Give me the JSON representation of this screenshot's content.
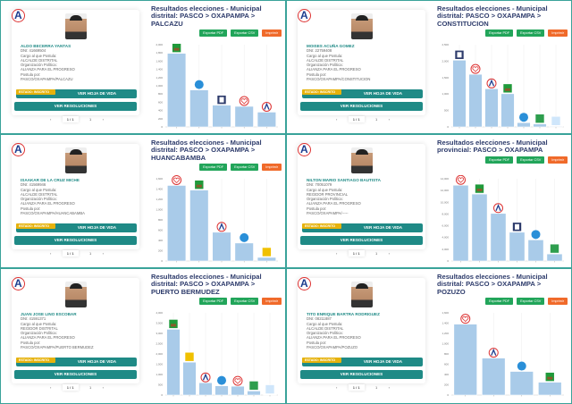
{
  "common": {
    "labels": {
      "dni": "DNI:",
      "cargo": "Cargo al que Postula:",
      "org": "Organización Política:",
      "postula": "Postula por:"
    },
    "badge": "ESTADO: INSCRITO",
    "btn_hoja": "VER HOJA DE VIDA",
    "btn_res": "VER RESOLUCIONES",
    "export_pdf": "Exportar PDF",
    "export_csv": "Exportar CSV",
    "print": "Imprimir",
    "pager": {
      "prev": "‹",
      "page": "1 / 1",
      "total": "1",
      "next": "›"
    },
    "colors": {
      "teal": "#1f8a86",
      "badge": "#e6b20c",
      "green": "#22a55a",
      "orange": "#f06a2a",
      "bar": "#a9cbe9",
      "title": "#2d3b6b"
    }
  },
  "panels": [
    {
      "name": "ALDO BECERRA YANTAS",
      "dni": "41669504",
      "cargo": "ALCALDE DISTRITAL",
      "org": "ALIANZA PARA EL PROGRESO",
      "postula": "PASCO/OXAPAMPA/PALCAZU",
      "title": "Resultados elecciones - Municipal distrital: PASCO > OXAPAMPA > PALCAZU"
    },
    {
      "name": "MOISES ACUÑA GOMEZ",
      "dni": "22759408",
      "cargo": "ALCALDE DISTRITAL",
      "org": "ALIANZA PARA EL PROGRESO",
      "postula": "PASCO/OXAPAMPA/CONSTITUCION",
      "title": "Resultados elecciones - Municipal distrital: PASCO > OXAPAMPA > CONSTITUCION"
    },
    {
      "name": "ISAAKAR DE LA CRUZ MICHE",
      "dni": "41569946",
      "cargo": "ALCALDE DISTRITAL",
      "org": "ALIANZA PARA EL PROGRESO",
      "postula": "PASCO/OXAPAMPA/HUANCABAMBA",
      "title": "Resultados elecciones - Municipal distrital: PASCO > OXAPAMPA > HUANCABAMBA"
    },
    {
      "name": "NILTON MARIO SANTIAGO BAUTISTA",
      "dni": "70051079",
      "cargo": "REGIDOR PROVINCIAL",
      "org": "ALIANZA PARA EL PROGRESO",
      "postula": "PASCO/OXAPAMPA/-----",
      "title": "Resultados elecciones - Municipal provincial: PASCO > OXAPAMPA"
    },
    {
      "name": "JUAN JOSE LINO ESCOBAR",
      "dni": "41591371",
      "cargo": "REGIDOR DISTRITAL",
      "org": "ALIANZA PARA EL PROGRESO",
      "postula": "PASCO/OXAPAMPA/PUERTO BERMUDEZ",
      "title": "Resultados elecciones - Municipal distrital: PASCO > OXAPAMPA > PUERTO BERMUDEZ"
    },
    {
      "name": "TITO ENRIQUE BARTRA RODRIGUEZ",
      "dni": "08211887",
      "cargo": "ALCALDE DISTRITAL",
      "org": "ALIANZA PARA EL PROGRESO",
      "postula": "PASCO/OXAPAMPA/POZUZO",
      "title": "Resultados elecciones - Municipal distrital: PASCO > OXAPAMPA > POZUZO"
    }
  ],
  "chart_data": [
    {
      "type": "bar",
      "ylim": [
        0,
        2000
      ],
      "yticks": [
        "0",
        "200",
        "400",
        "600",
        "800",
        "1,000",
        "1,200",
        "1,400",
        "1,600",
        "1,800",
        "2,000"
      ],
      "values": [
        1790,
        900,
        530,
        500,
        360
      ],
      "party_logos": [
        "plant",
        "drop",
        "p",
        "heart",
        "a"
      ]
    },
    {
      "type": "bar",
      "ylim": [
        0,
        2500
      ],
      "yticks": [
        "0",
        "500",
        "1,000",
        "1,500",
        "2,000",
        "2,500"
      ],
      "values": [
        2030,
        1600,
        1160,
        1010,
        130,
        90,
        20
      ],
      "party_logos": [
        "p",
        "heart",
        "a",
        "plant",
        "drop",
        "house",
        "blue"
      ]
    },
    {
      "type": "bar",
      "ylim": [
        0,
        1600
      ],
      "yticks": [
        "0",
        "200",
        "400",
        "600",
        "800",
        "1,000",
        "1,200",
        "1,400",
        "1,600"
      ],
      "values": [
        1470,
        1380,
        560,
        350,
        70
      ],
      "party_logos": [
        "heart",
        "plant",
        "a",
        "drop",
        "leaf"
      ]
    },
    {
      "type": "bar",
      "ylim": [
        0,
        14000
      ],
      "yticks": [
        "0",
        "2,000",
        "4,000",
        "6,000",
        "8,000",
        "10,000",
        "12,000",
        "14,000"
      ],
      "values": [
        12900,
        11400,
        8100,
        4900,
        3600,
        1200
      ],
      "party_logos": [
        "heart",
        "plant",
        "a",
        "p",
        "drop",
        "house"
      ]
    },
    {
      "type": "bar",
      "ylim": [
        0,
        4000
      ],
      "yticks": [
        "0",
        "500",
        "1,000",
        "1,500",
        "2,000",
        "2,500",
        "3,000",
        "3,500",
        "4,000"
      ],
      "values": [
        3200,
        1600,
        600,
        450,
        430,
        200,
        20
      ],
      "party_logos": [
        "plant",
        "leaf",
        "a",
        "drop",
        "heart",
        "house",
        "blue"
      ]
    },
    {
      "type": "bar",
      "ylim": [
        0,
        1600
      ],
      "yticks": [
        "0",
        "200",
        "400",
        "600",
        "800",
        "1,000",
        "1,200",
        "1,400",
        "1,600"
      ],
      "values": [
        1380,
        720,
        460,
        250
      ],
      "party_logos": [
        "heart",
        "a",
        "drop",
        "plant"
      ]
    }
  ]
}
